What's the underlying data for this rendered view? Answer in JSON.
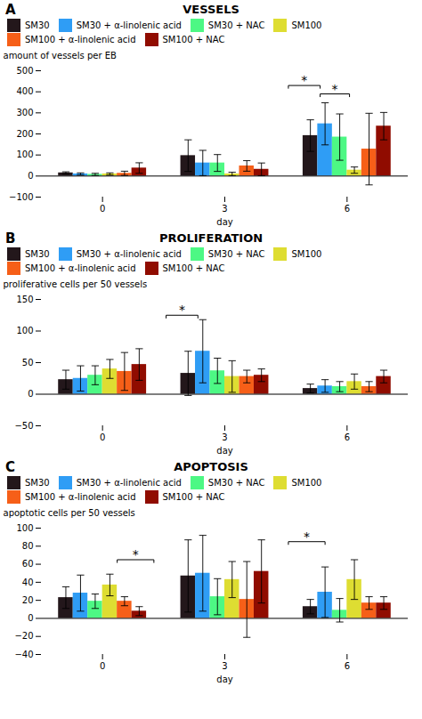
{
  "chart_data": [
    {
      "type": "bar",
      "panel_label": "A",
      "title": "VESSELS",
      "xlabel": "day",
      "ylabel": "amount of vessels per EB",
      "categories": [
        "0",
        "3",
        "6"
      ],
      "ylim": [
        -100,
        500
      ],
      "yticks": [
        -100,
        0,
        100,
        200,
        300,
        400,
        500
      ],
      "grid": false,
      "legend": "top",
      "series": [
        {
          "name": "SM30",
          "values": [
            15,
            97,
            192
          ],
          "errors": [
            5,
            75,
            75
          ]
        },
        {
          "name": "SM30 + α-linolenic acid",
          "values": [
            10,
            62,
            248
          ],
          "errors": [
            5,
            60,
            100
          ]
        },
        {
          "name": "SM30 + NAC",
          "values": [
            8,
            62,
            185
          ],
          "errors": [
            5,
            40,
            110
          ]
        },
        {
          "name": "SM100",
          "values": [
            10,
            10,
            28
          ],
          "errors": [
            5,
            8,
            15
          ]
        },
        {
          "name": "SM100 + α-linolenic acid",
          "values": [
            13,
            48,
            128
          ],
          "errors": [
            10,
            25,
            170
          ]
        },
        {
          "name": "SM100 + NAC",
          "values": [
            38,
            32,
            237
          ],
          "errors": [
            25,
            30,
            65
          ]
        }
      ],
      "brackets": [
        {
          "x1": 1.52,
          "x2": 1.78,
          "y": 430,
          "label": "*"
        },
        {
          "x1": 1.78,
          "x2": 2.02,
          "y": 390,
          "label": "*"
        }
      ]
    },
    {
      "type": "bar",
      "panel_label": "B",
      "title": "PROLIFERATION",
      "xlabel": "day",
      "ylabel": "proliferative cells per 50 vessels",
      "categories": [
        "0",
        "3",
        "6"
      ],
      "ylim": [
        -50,
        150
      ],
      "yticks": [
        -50,
        0,
        50,
        100,
        150
      ],
      "grid": false,
      "legend": "top",
      "series": [
        {
          "name": "SM30",
          "values": [
            23,
            33,
            9
          ],
          "errors": [
            15,
            35,
            7
          ]
        },
        {
          "name": "SM30 + α-linolenic acid",
          "values": [
            25,
            68,
            13
          ],
          "errors": [
            20,
            50,
            10
          ]
        },
        {
          "name": "SM30 + NAC",
          "values": [
            30,
            37,
            12
          ],
          "errors": [
            15,
            20,
            8
          ]
        },
        {
          "name": "SM100",
          "values": [
            40,
            28,
            20
          ],
          "errors": [
            15,
            25,
            12
          ]
        },
        {
          "name": "SM100 + α-linolenic acid",
          "values": [
            36,
            28,
            12
          ],
          "errors": [
            30,
            10,
            8
          ]
        },
        {
          "name": "SM100 + NAC",
          "values": [
            47,
            30,
            28
          ],
          "errors": [
            25,
            10,
            10
          ]
        }
      ],
      "brackets": [
        {
          "x1": 0.52,
          "x2": 0.78,
          "y": 125,
          "label": "*"
        }
      ]
    },
    {
      "type": "bar",
      "panel_label": "C",
      "title": "APOPTOSIS",
      "xlabel": "day",
      "ylabel": "apoptotic cells per 50 vessels",
      "categories": [
        "0",
        "3",
        "6"
      ],
      "ylim": [
        -40,
        100
      ],
      "yticks": [
        -40,
        -20,
        0,
        20,
        40,
        60,
        80,
        100
      ],
      "grid": false,
      "legend": "top",
      "series": [
        {
          "name": "SM30",
          "values": [
            23,
            47,
            13
          ],
          "errors": [
            12,
            40,
            8
          ]
        },
        {
          "name": "SM30 + α-linolenic acid",
          "values": [
            28,
            50,
            29
          ],
          "errors": [
            20,
            42,
            28
          ]
        },
        {
          "name": "SM30 + NAC",
          "values": [
            19,
            24,
            9
          ],
          "errors": [
            8,
            20,
            13
          ]
        },
        {
          "name": "SM100",
          "values": [
            37,
            43,
            43
          ],
          "errors": [
            12,
            20,
            22
          ]
        },
        {
          "name": "SM100 + α-linolenic acid",
          "values": [
            19,
            21,
            17
          ],
          "errors": [
            5,
            42,
            7
          ]
        },
        {
          "name": "SM100 + NAC",
          "values": [
            8,
            52,
            17
          ],
          "errors": [
            5,
            35,
            7
          ]
        }
      ],
      "brackets": [
        {
          "x1": 0.12,
          "x2": 0.42,
          "y": 65,
          "label": "*"
        },
        {
          "x1": 1.52,
          "x2": 1.82,
          "y": 85,
          "label": "*"
        }
      ]
    }
  ]
}
